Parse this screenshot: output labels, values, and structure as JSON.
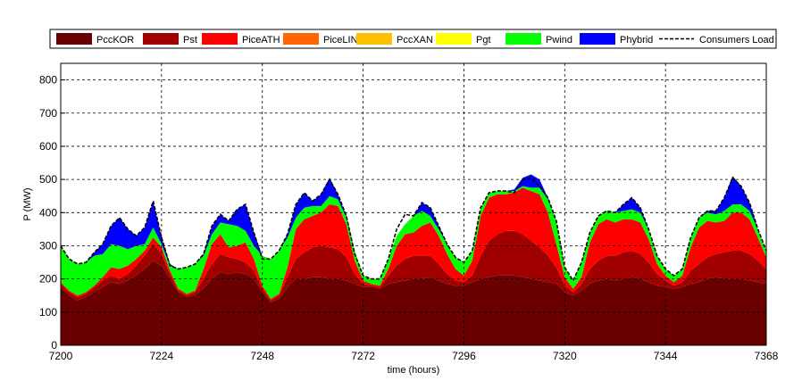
{
  "chart_data": {
    "type": "area",
    "stacked": true,
    "xlabel": "time (hours)",
    "ylabel": "P (MW)",
    "xlim": [
      7200,
      7368
    ],
    "ylim": [
      0,
      850
    ],
    "xticks": [
      7200,
      7224,
      7248,
      7272,
      7296,
      7320,
      7344,
      7368
    ],
    "yticks": [
      0,
      100,
      200,
      300,
      400,
      500,
      600,
      700,
      800
    ],
    "grid": true,
    "legend_position": "top",
    "x": [
      7200,
      7202,
      7204,
      7206,
      7208,
      7210,
      7212,
      7214,
      7216,
      7218,
      7220,
      7222,
      7224,
      7226,
      7228,
      7230,
      7232,
      7234,
      7236,
      7238,
      7240,
      7242,
      7244,
      7246,
      7248,
      7250,
      7252,
      7254,
      7256,
      7258,
      7260,
      7262,
      7264,
      7266,
      7268,
      7270,
      7272,
      7274,
      7276,
      7278,
      7280,
      7282,
      7284,
      7286,
      7288,
      7290,
      7292,
      7294,
      7296,
      7298,
      7300,
      7302,
      7304,
      7306,
      7308,
      7310,
      7312,
      7314,
      7316,
      7318,
      7320,
      7322,
      7324,
      7326,
      7328,
      7330,
      7332,
      7334,
      7336,
      7338,
      7340,
      7342,
      7344,
      7346,
      7348,
      7350,
      7352,
      7354,
      7356,
      7358,
      7360,
      7362,
      7364,
      7366,
      7368
    ],
    "series": [
      {
        "name": "PccKOR",
        "color": "#6b0000",
        "values": [
          175,
          150,
          135,
          145,
          160,
          175,
          190,
          185,
          195,
          210,
          230,
          255,
          240,
          200,
          160,
          145,
          150,
          170,
          200,
          220,
          215,
          220,
          215,
          200,
          160,
          130,
          140,
          175,
          200,
          200,
          205,
          205,
          200,
          200,
          195,
          185,
          175,
          175,
          170,
          185,
          190,
          195,
          200,
          200,
          205,
          195,
          185,
          180,
          180,
          190,
          200,
          205,
          210,
          210,
          210,
          205,
          200,
          195,
          190,
          185,
          160,
          150,
          165,
          185,
          195,
          200,
          195,
          200,
          205,
          200,
          190,
          180,
          175,
          170,
          175,
          185,
          190,
          200,
          205,
          200,
          200,
          200,
          195,
          190,
          185
        ]
      },
      {
        "name": "Pst",
        "color": "#a00000",
        "values": [
          10,
          10,
          10,
          10,
          15,
          20,
          20,
          15,
          20,
          30,
          40,
          50,
          35,
          15,
          5,
          5,
          10,
          30,
          45,
          55,
          50,
          40,
          35,
          25,
          10,
          5,
          10,
          30,
          60,
          80,
          90,
          95,
          95,
          90,
          70,
          30,
          10,
          5,
          5,
          25,
          50,
          65,
          70,
          70,
          65,
          50,
          30,
          15,
          10,
          20,
          70,
          110,
          125,
          135,
          135,
          130,
          115,
          100,
          80,
          50,
          20,
          10,
          20,
          45,
          60,
          70,
          75,
          80,
          80,
          75,
          60,
          35,
          20,
          10,
          15,
          40,
          55,
          65,
          70,
          80,
          85,
          85,
          80,
          65,
          45
        ]
      },
      {
        "name": "PiceATH",
        "color": "#ff0000",
        "values": [
          5,
          5,
          5,
          5,
          5,
          10,
          25,
          30,
          25,
          20,
          15,
          20,
          20,
          10,
          5,
          5,
          5,
          30,
          60,
          60,
          30,
          40,
          60,
          35,
          10,
          5,
          5,
          30,
          90,
          100,
          95,
          100,
          130,
          130,
          100,
          40,
          10,
          5,
          5,
          20,
          60,
          75,
          70,
          90,
          100,
          85,
          60,
          35,
          20,
          45,
          120,
          130,
          120,
          110,
          115,
          140,
          150,
          160,
          130,
          70,
          25,
          10,
          20,
          80,
          110,
          110,
          100,
          100,
          95,
          95,
          70,
          30,
          15,
          10,
          20,
          70,
          110,
          110,
          95,
          95,
          115,
          115,
          105,
          70,
          35
        ]
      },
      {
        "name": "PiceLIN",
        "color": "#ff6600",
        "values": [
          0,
          0,
          0,
          0,
          0,
          0,
          0,
          0,
          0,
          0,
          0,
          0,
          0,
          0,
          0,
          0,
          0,
          0,
          0,
          0,
          0,
          0,
          0,
          0,
          0,
          0,
          0,
          0,
          0,
          0,
          0,
          0,
          0,
          0,
          0,
          0,
          0,
          0,
          0,
          0,
          0,
          0,
          0,
          0,
          0,
          0,
          0,
          0,
          0,
          0,
          0,
          0,
          0,
          0,
          0,
          0,
          0,
          0,
          0,
          0,
          0,
          0,
          0,
          0,
          0,
          0,
          0,
          0,
          0,
          0,
          0,
          0,
          0,
          0,
          0,
          0,
          0,
          0,
          0,
          0,
          0,
          0,
          0,
          0,
          0
        ]
      },
      {
        "name": "PccXAN",
        "color": "#ffc000",
        "values": [
          0,
          0,
          0,
          0,
          0,
          0,
          0,
          0,
          0,
          0,
          0,
          0,
          0,
          0,
          0,
          0,
          0,
          0,
          0,
          0,
          0,
          0,
          0,
          0,
          0,
          0,
          0,
          0,
          0,
          0,
          0,
          0,
          0,
          0,
          0,
          0,
          0,
          0,
          0,
          0,
          0,
          0,
          0,
          0,
          0,
          0,
          0,
          0,
          0,
          0,
          0,
          0,
          0,
          0,
          0,
          0,
          0,
          0,
          0,
          0,
          0,
          0,
          0,
          0,
          0,
          0,
          0,
          0,
          0,
          0,
          0,
          0,
          0,
          0,
          0,
          0,
          0,
          0,
          0,
          0,
          0,
          0,
          0,
          0,
          0
        ]
      },
      {
        "name": "Pgt",
        "color": "#ffff00",
        "values": [
          0,
          0,
          0,
          0,
          0,
          0,
          0,
          0,
          0,
          0,
          0,
          0,
          0,
          0,
          0,
          0,
          0,
          0,
          0,
          0,
          0,
          0,
          0,
          0,
          0,
          0,
          0,
          0,
          0,
          0,
          0,
          0,
          0,
          0,
          0,
          0,
          0,
          0,
          0,
          0,
          0,
          0,
          0,
          0,
          0,
          0,
          0,
          0,
          0,
          0,
          0,
          0,
          0,
          0,
          0,
          0,
          0,
          0,
          0,
          0,
          0,
          0,
          0,
          0,
          0,
          0,
          0,
          0,
          0,
          0,
          0,
          0,
          0,
          0,
          0,
          0,
          0,
          0,
          0,
          0,
          0,
          0,
          0,
          0,
          0
        ]
      },
      {
        "name": "Pwind",
        "color": "#00ff00",
        "values": [
          110,
          95,
          95,
          90,
          90,
          70,
          70,
          70,
          50,
          40,
          20,
          30,
          10,
          15,
          60,
          80,
          80,
          40,
          30,
          35,
          70,
          60,
          35,
          40,
          90,
          120,
          130,
          90,
          35,
          35,
          30,
          20,
          25,
          20,
          20,
          30,
          15,
          15,
          20,
          30,
          30,
          30,
          50,
          45,
          20,
          20,
          30,
          35,
          40,
          30,
          25,
          15,
          10,
          10,
          5,
          5,
          10,
          20,
          40,
          70,
          30,
          25,
          45,
          30,
          25,
          25,
          30,
          25,
          30,
          30,
          30,
          25,
          20,
          20,
          20,
          30,
          30,
          25,
          25,
          30,
          25,
          25,
          25,
          25,
          20
        ]
      },
      {
        "name": "Phybrid",
        "color": "#0000ff",
        "values": [
          0,
          0,
          0,
          0,
          10,
          30,
          55,
          85,
          60,
          30,
          50,
          80,
          20,
          5,
          0,
          0,
          0,
          5,
          25,
          25,
          10,
          50,
          80,
          40,
          0,
          0,
          0,
          10,
          40,
          45,
          15,
          35,
          55,
          15,
          5,
          0,
          0,
          0,
          0,
          0,
          0,
          0,
          0,
          25,
          25,
          10,
          0,
          0,
          0,
          0,
          0,
          0,
          0,
          0,
          5,
          25,
          40,
          25,
          5,
          0,
          0,
          0,
          0,
          0,
          0,
          0,
          0,
          20,
          35,
          15,
          0,
          0,
          0,
          0,
          0,
          0,
          0,
          5,
          10,
          40,
          85,
          55,
          25,
          0,
          0
        ]
      },
      {
        "name": "Consumers Load",
        "type": "line",
        "color": "#000000",
        "style": "dashed",
        "values": [
          300,
          260,
          245,
          250,
          280,
          305,
          360,
          385,
          350,
          330,
          355,
          435,
          325,
          240,
          230,
          235,
          245,
          275,
          360,
          395,
          375,
          410,
          425,
          340,
          260,
          260,
          285,
          335,
          425,
          460,
          435,
          455,
          500,
          455,
          390,
          275,
          210,
          200,
          200,
          260,
          350,
          395,
          390,
          430,
          415,
          360,
          305,
          265,
          250,
          285,
          415,
          460,
          465,
          465,
          460,
          500,
          505,
          480,
          445,
          375,
          235,
          195,
          250,
          340,
          390,
          405,
          400,
          425,
          445,
          415,
          350,
          270,
          230,
          210,
          230,
          325,
          385,
          405,
          405,
          445,
          505,
          480,
          430,
          350,
          285
        ]
      }
    ]
  }
}
